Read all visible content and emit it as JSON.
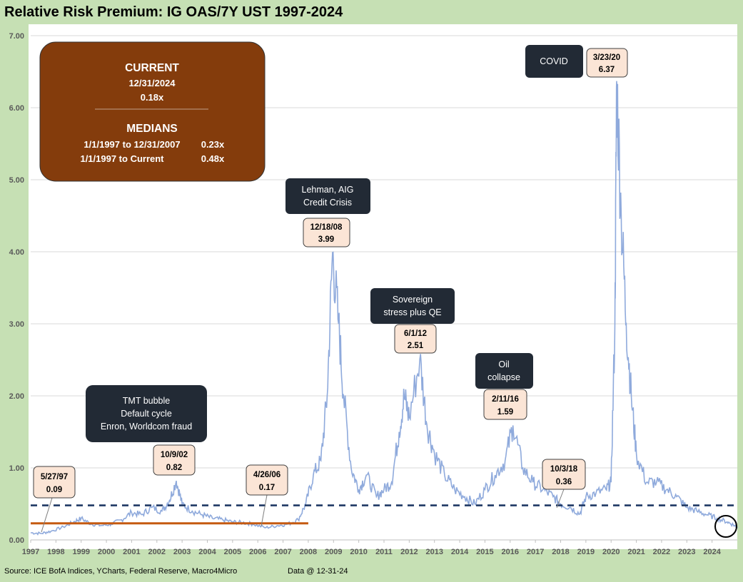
{
  "title": "Relative Risk Premium: IG OAS/7Y UST 1997-2024",
  "summary": {
    "current_heading": "CURRENT",
    "current_date": "12/31/2024",
    "current_value": "0.18x",
    "medians_heading": "MEDIANS",
    "median_rows": [
      {
        "range": "1/1/1997 to 12/31/2007",
        "value": "0.23x"
      },
      {
        "range": "1/1/1997 to Current",
        "value": "0.48x"
      }
    ]
  },
  "event_boxes": [
    {
      "lines": [
        "COVID"
      ]
    },
    {
      "lines": [
        "Lehman, AIG",
        "Credit Crisis"
      ]
    },
    {
      "lines": [
        "Sovereign",
        "stress plus QE"
      ]
    },
    {
      "lines": [
        "Oil",
        "collapse"
      ]
    },
    {
      "lines": [
        "TMT bubble",
        "Default cycle",
        "Enron, Worldcom fraud"
      ]
    }
  ],
  "callouts": [
    {
      "date": "5/27/97",
      "value": "0.09"
    },
    {
      "date": "10/9/02",
      "value": "0.82"
    },
    {
      "date": "4/26/06",
      "value": "0.17"
    },
    {
      "date": "12/18/08",
      "value": "3.99"
    },
    {
      "date": "6/1/12",
      "value": "2.51"
    },
    {
      "date": "2/11/16",
      "value": "1.59"
    },
    {
      "date": "10/3/18",
      "value": "0.36"
    },
    {
      "date": "3/23/20",
      "value": "6.37"
    }
  ],
  "footer": {
    "source": "Source: ICE BofA Indices, YCharts, Federal Reserve, Macro4Micro",
    "data_as_of": "Data @ 12-31-24"
  },
  "colors": {
    "series": "#8faadc",
    "median_full": "#1f3864",
    "median_pre2008": "#c55a11",
    "summary_box": "#843c0c",
    "event_box": "#222a35",
    "callout_box": "#fbe5d6",
    "background": "#c6e0b4"
  },
  "chart_data": {
    "type": "line",
    "title": "Relative Risk Premium: IG OAS/7Y UST 1997-2024",
    "xlabel": "",
    "ylabel": "",
    "x_range": [
      1997,
      2025
    ],
    "ylim": [
      0,
      7
    ],
    "y_ticks": [
      "0.00",
      "1.00",
      "2.00",
      "3.00",
      "4.00",
      "5.00",
      "6.00",
      "7.00"
    ],
    "x_ticks": [
      "1997",
      "1998",
      "1999",
      "2000",
      "2001",
      "2002",
      "2003",
      "2004",
      "2005",
      "2006",
      "2007",
      "2008",
      "2009",
      "2010",
      "2011",
      "2012",
      "2013",
      "2014",
      "2015",
      "2016",
      "2017",
      "2018",
      "2019",
      "2020",
      "2021",
      "2022",
      "2023",
      "2024"
    ],
    "grid": "horizontal",
    "reference_lines": [
      {
        "value": 0.48,
        "from": 1997,
        "to": 2025,
        "style": "dashed"
      },
      {
        "value": 0.23,
        "from": 1997,
        "to": 2008,
        "style": "solid"
      }
    ],
    "series": [
      {
        "x": [
          1997.0,
          1997.4,
          1997.8,
          1998.3,
          1998.7,
          1999.0,
          1999.4,
          1999.8,
          2000.2,
          2000.6,
          2001.0,
          2001.4,
          2001.8,
          2002.2,
          2002.5,
          2002.77,
          2003.0,
          2003.4,
          2003.8,
          2004.2,
          2004.6,
          2005.0,
          2005.4,
          2005.8,
          2006.32,
          2006.8,
          2007.2,
          2007.6,
          2007.9,
          2008.2,
          2008.5,
          2008.75,
          2008.96,
          2009.2,
          2009.4,
          2009.7,
          2010.0,
          2010.3,
          2010.7,
          2011.0,
          2011.3,
          2011.6,
          2011.8,
          2012.0,
          2012.42,
          2012.7,
          2013.0,
          2013.4,
          2013.8,
          2014.2,
          2014.6,
          2015.0,
          2015.4,
          2015.8,
          2016.11,
          2016.5,
          2016.9,
          2017.3,
          2017.7,
          2018.0,
          2018.4,
          2018.76,
          2019.0,
          2019.4,
          2019.8,
          2020.0,
          2020.15,
          2020.22,
          2020.4,
          2020.6,
          2020.8,
          2021.0,
          2021.4,
          2021.8,
          2022.2,
          2022.6,
          2023.0,
          2023.4,
          2023.8,
          2024.2,
          2024.6,
          2024.9,
          2025.0
        ],
        "y": [
          0.1,
          0.09,
          0.12,
          0.18,
          0.25,
          0.3,
          0.22,
          0.2,
          0.22,
          0.28,
          0.38,
          0.35,
          0.45,
          0.4,
          0.55,
          0.82,
          0.5,
          0.4,
          0.35,
          0.3,
          0.28,
          0.25,
          0.24,
          0.22,
          0.17,
          0.2,
          0.22,
          0.28,
          0.5,
          0.9,
          1.1,
          2.0,
          3.99,
          3.0,
          2.0,
          1.0,
          0.7,
          0.9,
          0.6,
          0.7,
          0.8,
          1.5,
          2.0,
          1.7,
          2.51,
          1.6,
          1.2,
          0.9,
          0.7,
          0.6,
          0.5,
          0.7,
          0.9,
          1.1,
          1.59,
          1.0,
          0.8,
          0.7,
          0.6,
          0.5,
          0.45,
          0.36,
          0.6,
          0.65,
          0.7,
          0.8,
          3.0,
          6.37,
          4.5,
          3.0,
          2.0,
          1.2,
          0.8,
          0.8,
          0.7,
          0.6,
          0.45,
          0.4,
          0.35,
          0.3,
          0.25,
          0.2,
          0.18
        ]
      }
    ]
  }
}
